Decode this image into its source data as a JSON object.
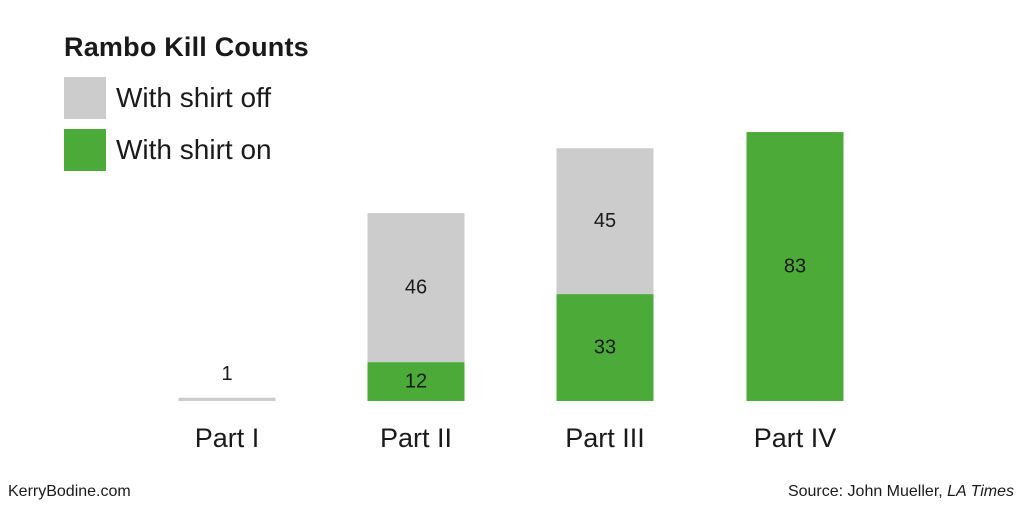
{
  "chart_data": {
    "type": "bar",
    "stacked": true,
    "title": "Rambo Kill Counts",
    "categories": [
      "Part I",
      "Part II",
      "Part III",
      "Part IV"
    ],
    "series": [
      {
        "name": "With shirt on",
        "values": [
          0,
          12,
          33,
          83
        ]
      },
      {
        "name": "With shirt off",
        "values": [
          1,
          46,
          45,
          0
        ]
      }
    ],
    "colors": {
      "With shirt on": "#4caa38",
      "With shirt off": "#cccccc"
    },
    "legend_placement": "top-left",
    "grid": false
  },
  "footer": {
    "left": "KerryBodine.com",
    "source_prefix": "Source: John Mueller, ",
    "source_publication": "LA Times"
  }
}
